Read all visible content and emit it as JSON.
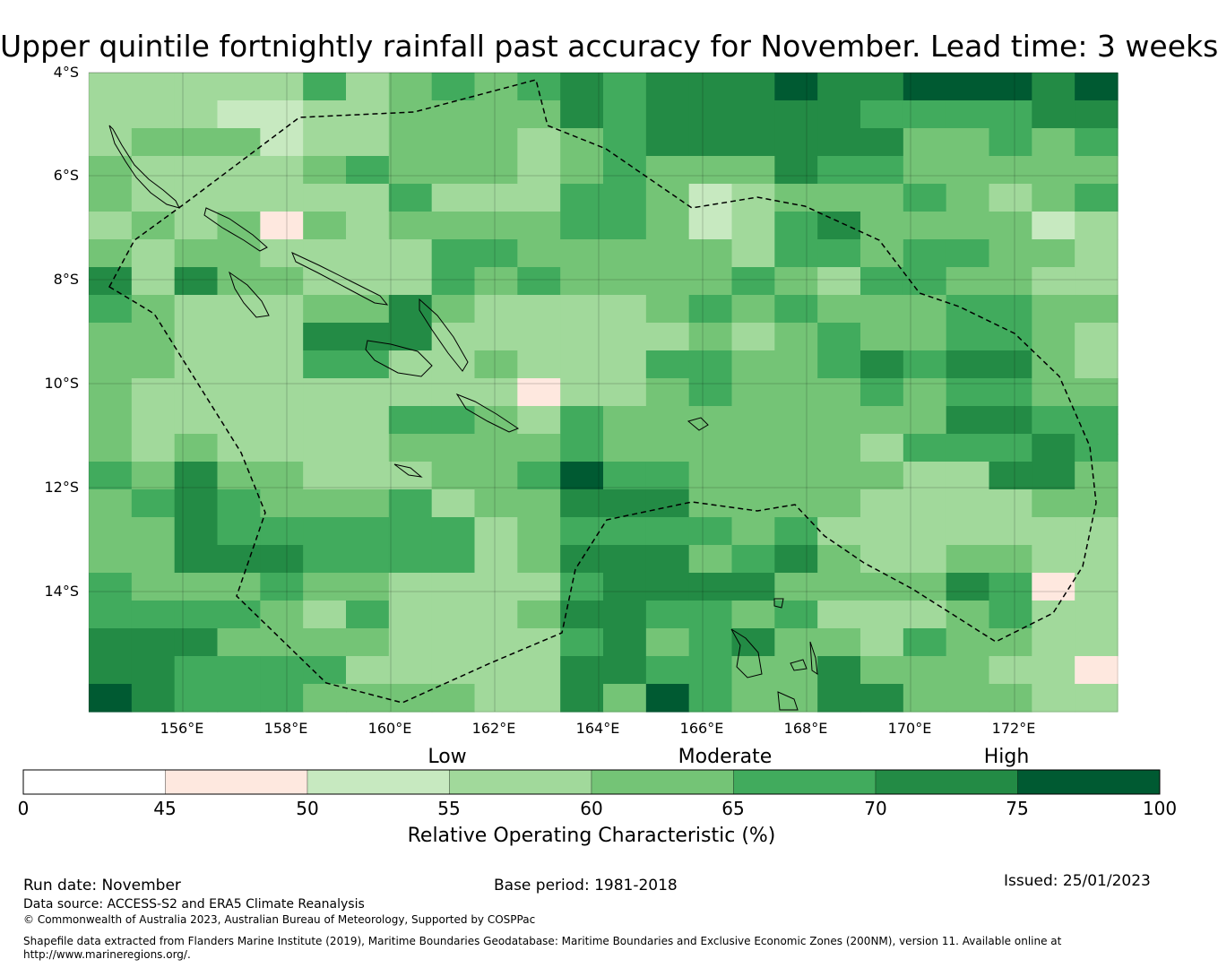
{
  "title": "Upper quintile fortnightly rainfall past accuracy for November. Lead time: 3 weeks",
  "map": {
    "lat_labels": [
      "4°S",
      "6°S",
      "8°S",
      "10°S",
      "12°S",
      "14°S"
    ],
    "lon_labels": [
      "156°E",
      "158°E",
      "160°E",
      "162°E",
      "164°E",
      "166°E",
      "168°E",
      "170°E",
      "172°E"
    ],
    "grid_cols": 24,
    "grid_rows": 23,
    "grid_values": [
      [
        55,
        58,
        58,
        58,
        58,
        68,
        58,
        62,
        68,
        62,
        68,
        72,
        68,
        72,
        72,
        72,
        78,
        72,
        72,
        78,
        78,
        78,
        72,
        78
      ],
      [
        55,
        58,
        58,
        52,
        52,
        58,
        58,
        62,
        62,
        62,
        62,
        72,
        68,
        72,
        72,
        72,
        72,
        72,
        68,
        68,
        68,
        68,
        72,
        72
      ],
      [
        58,
        62,
        62,
        62,
        52,
        58,
        58,
        62,
        62,
        62,
        58,
        62,
        68,
        72,
        72,
        72,
        72,
        72,
        72,
        62,
        62,
        68,
        62,
        68
      ],
      [
        62,
        58,
        55,
        58,
        58,
        62,
        68,
        62,
        62,
        62,
        58,
        62,
        68,
        62,
        62,
        62,
        72,
        68,
        68,
        62,
        62,
        62,
        62,
        62
      ],
      [
        62,
        58,
        58,
        58,
        55,
        58,
        55,
        68,
        58,
        58,
        58,
        68,
        68,
        62,
        52,
        58,
        62,
        62,
        62,
        68,
        62,
        58,
        62,
        68
      ],
      [
        58,
        62,
        58,
        62,
        48,
        62,
        55,
        62,
        62,
        62,
        62,
        68,
        68,
        62,
        52,
        58,
        68,
        72,
        62,
        62,
        62,
        62,
        52,
        58
      ],
      [
        62,
        58,
        62,
        62,
        58,
        55,
        58,
        55,
        68,
        68,
        62,
        62,
        62,
        62,
        62,
        58,
        68,
        68,
        62,
        68,
        68,
        62,
        62,
        58
      ],
      [
        72,
        58,
        72,
        62,
        62,
        58,
        58,
        55,
        68,
        62,
        68,
        62,
        62,
        62,
        62,
        68,
        62,
        58,
        68,
        68,
        62,
        62,
        58,
        58
      ],
      [
        68,
        62,
        58,
        58,
        58,
        62,
        62,
        72,
        62,
        58,
        58,
        58,
        58,
        62,
        68,
        62,
        68,
        62,
        62,
        62,
        68,
        68,
        62,
        62
      ],
      [
        62,
        62,
        58,
        58,
        58,
        72,
        72,
        72,
        58,
        58,
        58,
        58,
        58,
        58,
        62,
        58,
        62,
        68,
        62,
        62,
        68,
        68,
        62,
        58
      ],
      [
        62,
        62,
        58,
        55,
        58,
        68,
        68,
        58,
        58,
        62,
        58,
        58,
        58,
        68,
        68,
        62,
        62,
        68,
        72,
        68,
        72,
        72,
        62,
        58
      ],
      [
        62,
        58,
        55,
        58,
        58,
        55,
        55,
        55,
        55,
        58,
        48,
        55,
        58,
        62,
        68,
        62,
        62,
        62,
        68,
        62,
        68,
        68,
        62,
        62
      ],
      [
        62,
        58,
        55,
        58,
        58,
        58,
        58,
        68,
        68,
        62,
        58,
        68,
        62,
        62,
        62,
        62,
        62,
        62,
        62,
        62,
        72,
        72,
        68,
        68
      ],
      [
        62,
        58,
        62,
        58,
        58,
        58,
        58,
        62,
        62,
        62,
        62,
        68,
        62,
        62,
        62,
        62,
        62,
        62,
        58,
        68,
        68,
        68,
        72,
        68
      ],
      [
        68,
        62,
        72,
        62,
        62,
        58,
        58,
        58,
        62,
        62,
        68,
        78,
        68,
        68,
        62,
        62,
        62,
        62,
        62,
        55,
        58,
        72,
        72,
        62
      ],
      [
        62,
        68,
        72,
        68,
        62,
        62,
        62,
        68,
        58,
        62,
        62,
        72,
        72,
        72,
        62,
        62,
        62,
        62,
        58,
        58,
        58,
        58,
        62,
        62
      ],
      [
        62,
        62,
        72,
        68,
        68,
        68,
        68,
        68,
        68,
        58,
        62,
        68,
        68,
        68,
        68,
        62,
        68,
        58,
        58,
        58,
        55,
        58,
        58,
        55
      ],
      [
        62,
        62,
        72,
        72,
        72,
        68,
        68,
        68,
        68,
        58,
        62,
        72,
        72,
        72,
        62,
        68,
        72,
        62,
        55,
        55,
        62,
        62,
        58,
        55
      ],
      [
        68,
        62,
        62,
        62,
        68,
        62,
        62,
        58,
        55,
        58,
        58,
        68,
        72,
        72,
        72,
        72,
        62,
        62,
        62,
        62,
        72,
        68,
        48,
        58
      ],
      [
        68,
        68,
        68,
        68,
        62,
        58,
        68,
        58,
        58,
        55,
        62,
        72,
        72,
        68,
        68,
        62,
        68,
        58,
        58,
        58,
        62,
        68,
        55,
        58
      ],
      [
        72,
        72,
        72,
        62,
        62,
        62,
        62,
        58,
        58,
        58,
        58,
        68,
        72,
        62,
        68,
        72,
        62,
        62,
        58,
        68,
        62,
        62,
        55,
        55
      ],
      [
        72,
        72,
        68,
        68,
        68,
        68,
        58,
        58,
        58,
        58,
        58,
        72,
        72,
        68,
        68,
        62,
        62,
        72,
        62,
        62,
        62,
        58,
        55,
        48
      ],
      [
        78,
        72,
        68,
        68,
        68,
        62,
        62,
        62,
        62,
        58,
        58,
        72,
        62,
        78,
        68,
        62,
        62,
        72,
        72,
        62,
        62,
        62,
        58,
        58
      ]
    ]
  },
  "colorbar": {
    "category_labels": [
      "Low",
      "Moderate",
      "High"
    ],
    "ticks": [
      "0",
      "45",
      "50",
      "55",
      "60",
      "65",
      "70",
      "75",
      "100"
    ],
    "colors": [
      "#ffffff",
      "#fee8df",
      "#c7e9c0",
      "#a1d99b",
      "#74c476",
      "#41ab5d",
      "#238b45",
      "#005a32"
    ],
    "title": "Relative Operating Characteristic (%)"
  },
  "footer": {
    "run_date": "Run date: November",
    "base_period": "Base period: 1981-2018",
    "issued": "Issued: 25/01/2023",
    "data_source": "Data source: ACCESS-S2 and ERA5 Climate Reanalysis",
    "copyright": "© Commonwealth of Australia 2023, Australian Bureau of Meteorology, Supported by COSPPac",
    "shapefile_1": "Shapefile data extracted from Flanders Marine Institute (2019), Maritime Boundaries Geodatabase: Maritime Boundaries and Exclusive Economic Zones (200NM), version 11. Available online at",
    "shapefile_2": "http://www.marineregions.org/."
  }
}
